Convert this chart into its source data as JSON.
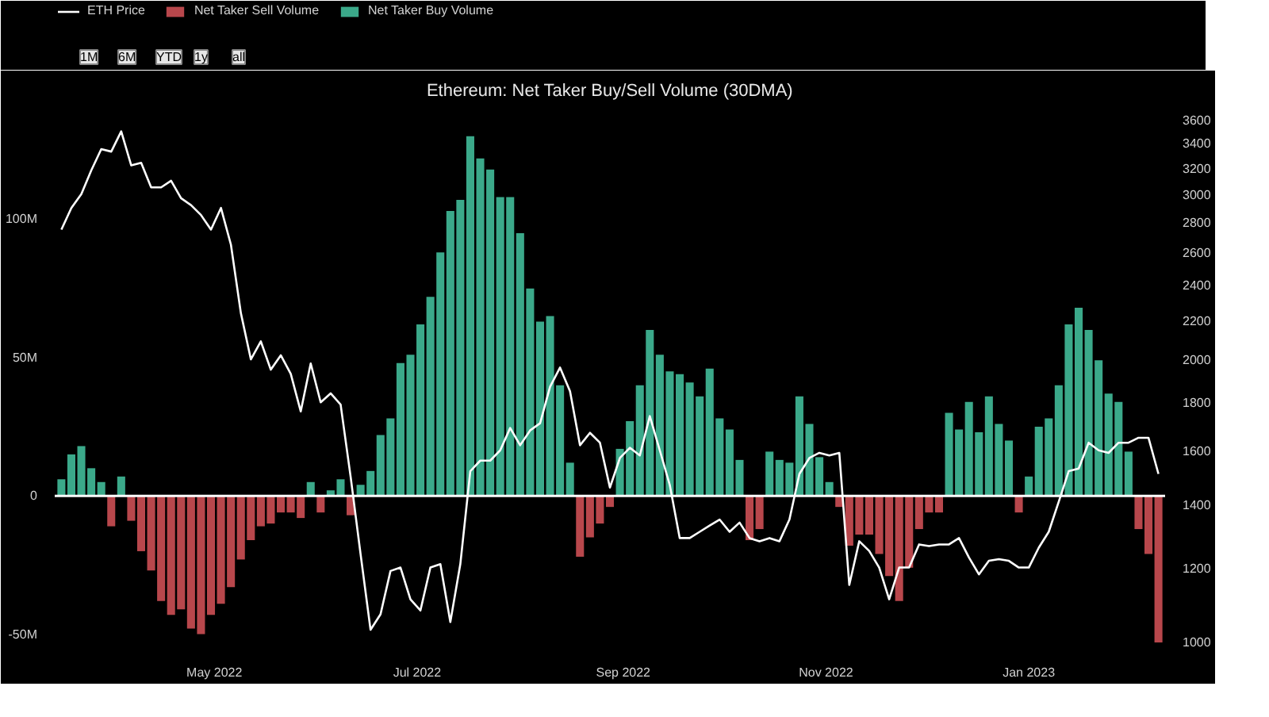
{
  "chart_data": {
    "type": "bar",
    "title": "Ethereum: Net Taker Buy/Sell Volume (30DMA)",
    "x": [
      "2022-03-16",
      "2022-03-19",
      "2022-03-22",
      "2022-03-25",
      "2022-03-28",
      "2022-03-31",
      "2022-04-03",
      "2022-04-06",
      "2022-04-09",
      "2022-04-12",
      "2022-04-15",
      "2022-04-18",
      "2022-04-21",
      "2022-04-24",
      "2022-04-27",
      "2022-04-30",
      "2022-05-03",
      "2022-05-06",
      "2022-05-09",
      "2022-05-12",
      "2022-05-15",
      "2022-05-18",
      "2022-05-21",
      "2022-05-24",
      "2022-05-27",
      "2022-05-30",
      "2022-06-02",
      "2022-06-05",
      "2022-06-08",
      "2022-06-11",
      "2022-06-14",
      "2022-06-17",
      "2022-06-20",
      "2022-06-23",
      "2022-06-26",
      "2022-06-29",
      "2022-07-02",
      "2022-07-05",
      "2022-07-08",
      "2022-07-11",
      "2022-07-14",
      "2022-07-17",
      "2022-07-20",
      "2022-07-23",
      "2022-07-26",
      "2022-07-29",
      "2022-08-01",
      "2022-08-04",
      "2022-08-07",
      "2022-08-10",
      "2022-08-13",
      "2022-08-16",
      "2022-08-19",
      "2022-08-22",
      "2022-08-25",
      "2022-08-28",
      "2022-08-31",
      "2022-09-03",
      "2022-09-06",
      "2022-09-09",
      "2022-09-12",
      "2022-09-15",
      "2022-09-18",
      "2022-09-21",
      "2022-09-24",
      "2022-09-27",
      "2022-09-30",
      "2022-10-03",
      "2022-10-06",
      "2022-10-09",
      "2022-10-12",
      "2022-10-15",
      "2022-10-18",
      "2022-10-21",
      "2022-10-24",
      "2022-10-27",
      "2022-10-30",
      "2022-11-02",
      "2022-11-05",
      "2022-11-08",
      "2022-11-11",
      "2022-11-14",
      "2022-11-17",
      "2022-11-20",
      "2022-11-23",
      "2022-11-26",
      "2022-11-29",
      "2022-12-02",
      "2022-12-05",
      "2022-12-08",
      "2022-12-11",
      "2022-12-14",
      "2022-12-17",
      "2022-12-20",
      "2022-12-23",
      "2022-12-26",
      "2022-12-29",
      "2023-01-01",
      "2023-01-04",
      "2023-01-07",
      "2023-01-10",
      "2023-01-13",
      "2023-01-16",
      "2023-01-19",
      "2023-01-22",
      "2023-01-25",
      "2023-01-28",
      "2023-01-31",
      "2023-02-03",
      "2023-02-06",
      "2023-02-09"
    ],
    "series": [
      {
        "name": "ETH Price",
        "type": "line",
        "axis": "y2",
        "color": "#ffffff",
        "values": [
          2750,
          2900,
          3000,
          3180,
          3350,
          3330,
          3500,
          3220,
          3240,
          3050,
          3050,
          3100,
          2970,
          2920,
          2850,
          2750,
          2900,
          2650,
          2240,
          2000,
          2090,
          1950,
          2020,
          1930,
          1760,
          1980,
          1800,
          1840,
          1790,
          1500,
          1240,
          1030,
          1070,
          1190,
          1200,
          1110,
          1080,
          1200,
          1210,
          1050,
          1210,
          1520,
          1560,
          1560,
          1600,
          1690,
          1620,
          1680,
          1710,
          1870,
          1960,
          1850,
          1620,
          1670,
          1630,
          1460,
          1570,
          1610,
          1580,
          1740,
          1600,
          1470,
          1290,
          1290,
          1310,
          1330,
          1350,
          1310,
          1340,
          1290,
          1280,
          1290,
          1280,
          1350,
          1510,
          1570,
          1590,
          1580,
          1590,
          1150,
          1280,
          1250,
          1200,
          1110,
          1200,
          1200,
          1270,
          1265,
          1270,
          1270,
          1290,
          1230,
          1180,
          1220,
          1225,
          1220,
          1200,
          1200,
          1260,
          1310,
          1410,
          1520,
          1530,
          1630,
          1600,
          1590,
          1630,
          1630,
          1650,
          1650,
          1510
        ]
      },
      {
        "name": "Net Taker Sell Volume",
        "color": "#b8474c",
        "values": [
          null,
          null,
          null,
          null,
          null,
          -11,
          null,
          -9,
          -20,
          -27,
          -38,
          -43,
          -41,
          -48,
          -50,
          -43,
          -39,
          -33,
          -23,
          -16,
          -11,
          -10,
          -6,
          -6,
          -8,
          null,
          -6,
          null,
          null,
          -7,
          null,
          null,
          null,
          null,
          null,
          null,
          null,
          null,
          null,
          null,
          null,
          null,
          null,
          null,
          null,
          null,
          null,
          null,
          null,
          null,
          null,
          null,
          -22,
          -15,
          -10,
          -4,
          null,
          null,
          null,
          null,
          null,
          null,
          null,
          null,
          null,
          null,
          null,
          null,
          null,
          -16,
          -12,
          null,
          null,
          null,
          null,
          null,
          null,
          null,
          -4,
          -18,
          -14,
          -14,
          -21,
          -29,
          -38,
          -26,
          -12,
          -6,
          -6,
          null,
          null,
          null,
          null,
          null,
          null,
          null,
          -6,
          null,
          null,
          null,
          null,
          null,
          null,
          null,
          null,
          null,
          null,
          null,
          -12,
          -21,
          -53
        ]
      },
      {
        "name": "Net Taker Buy Volume",
        "color": "#3ba98a",
        "values": [
          6,
          15,
          18,
          10,
          5,
          null,
          7,
          null,
          null,
          null,
          null,
          null,
          null,
          null,
          null,
          null,
          null,
          null,
          null,
          null,
          null,
          null,
          null,
          null,
          null,
          5,
          null,
          2,
          6,
          null,
          4,
          9,
          22,
          28,
          48,
          51,
          62,
          72,
          88,
          103,
          107,
          130,
          122,
          118,
          108,
          108,
          95,
          75,
          63,
          65,
          40,
          12,
          null,
          null,
          null,
          null,
          17,
          27,
          40,
          60,
          51,
          45,
          44,
          41,
          36,
          46,
          28,
          24,
          13,
          null,
          null,
          16,
          13,
          12,
          36,
          26,
          14,
          5,
          null,
          null,
          null,
          null,
          null,
          null,
          null,
          null,
          null,
          null,
          null,
          30,
          24,
          34,
          23,
          36,
          26,
          20,
          null,
          7,
          25,
          28,
          40,
          62,
          68,
          60,
          49,
          37,
          34,
          16,
          null,
          null,
          null
        ]
      }
    ],
    "xlim": [
      "2022-03-14",
      "2023-02-11"
    ],
    "xticks": [
      {
        "value": "2022-05-01",
        "label": "May 2022"
      },
      {
        "value": "2022-07-01",
        "label": "Jul 2022"
      },
      {
        "value": "2022-09-01",
        "label": "Sep 2022"
      },
      {
        "value": "2022-11-01",
        "label": "Nov 2022"
      },
      {
        "value": "2023-01-01",
        "label": "Jan 2023"
      }
    ],
    "ylim": [
      -55,
      140
    ],
    "yticks": [
      {
        "value": -50,
        "label": "-50M"
      },
      {
        "value": 0,
        "label": "0"
      },
      {
        "value": 50,
        "label": "50M"
      },
      {
        "value": 100,
        "label": "100M"
      }
    ],
    "y2lim": [
      985,
      3700
    ],
    "y2ticks": [
      1000,
      1200,
      1400,
      1600,
      1800,
      2000,
      2200,
      2400,
      2600,
      2800,
      3000,
      3200,
      3400,
      3600
    ],
    "log": "y2",
    "ref_lines": [
      {
        "axis": "y",
        "value": 0,
        "color": "#ffffff"
      }
    ],
    "annotations": [
      "1M",
      "6M",
      "YTD",
      "1y",
      "all"
    ],
    "legend": "top left",
    "grid": false
  }
}
